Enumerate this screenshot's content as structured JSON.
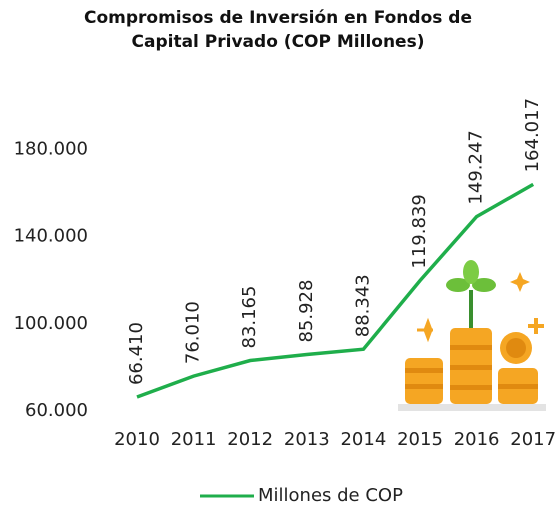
{
  "chart_data": {
    "type": "line",
    "title": "Compromisos de Inversión en Fondos de Capital Privado (COP Millones)",
    "categories": [
      "2010",
      "2011",
      "2012",
      "2013",
      "2014",
      "2015",
      "2016",
      "2017"
    ],
    "series": [
      {
        "name": "Millones de COP",
        "color": "#1fae4b",
        "values": [
          66410,
          76010,
          83165,
          85928,
          88343,
          119839,
          149247,
          164017
        ],
        "value_labels": [
          "66.410",
          "76.010",
          "83.165",
          "85.928",
          "88.343",
          "119.839",
          "149.247",
          "164.017"
        ]
      }
    ],
    "ylim": [
      60000,
      200000
    ],
    "yticks": [
      {
        "value": 60000,
        "label": "60.000"
      },
      {
        "value": 100000,
        "label": "100.000"
      },
      {
        "value": 140000,
        "label": "140.000"
      },
      {
        "value": 180000,
        "label": "180.000"
      }
    ],
    "grid": false
  }
}
